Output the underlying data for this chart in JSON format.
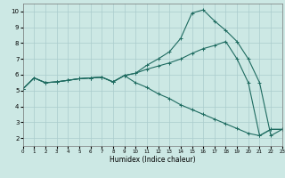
{
  "xlabel": "Humidex (Indice chaleur)",
  "xlim": [
    0,
    23
  ],
  "ylim": [
    1.5,
    10.5
  ],
  "xticks": [
    0,
    1,
    2,
    3,
    4,
    5,
    6,
    7,
    8,
    9,
    10,
    11,
    12,
    13,
    14,
    15,
    16,
    17,
    18,
    19,
    20,
    21,
    22,
    23
  ],
  "yticks": [
    2,
    3,
    4,
    5,
    6,
    7,
    8,
    9,
    10
  ],
  "bg_color": "#cce8e4",
  "line_color": "#1e6b60",
  "line1_y": [
    5.1,
    5.8,
    5.5,
    5.55,
    5.65,
    5.75,
    5.8,
    5.85,
    5.55,
    5.95,
    6.1,
    6.6,
    7.0,
    7.45,
    8.3,
    9.9,
    10.1,
    9.4,
    8.8,
    8.1,
    7.0,
    5.5,
    2.15,
    2.55
  ],
  "line2_y": [
    5.1,
    5.8,
    5.5,
    5.55,
    5.65,
    5.75,
    5.8,
    5.85,
    5.55,
    5.95,
    6.1,
    6.35,
    6.55,
    6.75,
    7.0,
    7.35,
    7.65,
    7.85,
    8.1,
    7.0,
    5.5,
    2.15,
    2.55,
    2.55
  ],
  "line3_y": [
    5.1,
    5.8,
    5.5,
    5.55,
    5.65,
    5.75,
    5.8,
    5.85,
    5.55,
    5.95,
    5.5,
    5.2,
    4.8,
    4.5,
    4.1,
    3.8,
    3.5,
    3.2,
    2.9,
    2.6,
    2.3,
    2.15,
    2.55,
    2.55
  ],
  "gridcolor": "#aacccc",
  "marker": "+",
  "markersize": 3,
  "linewidth": 0.8
}
